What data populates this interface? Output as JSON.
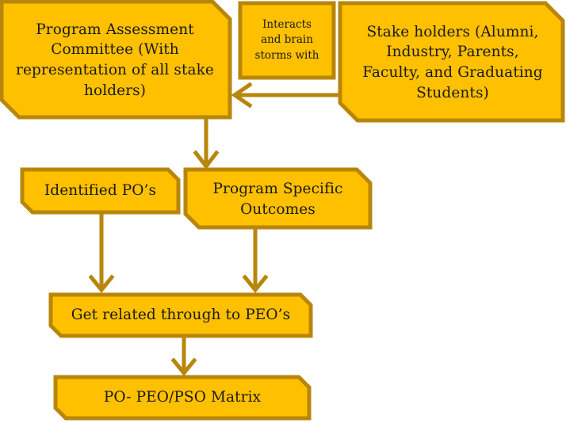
{
  "colors": {
    "fill": "#FFC000",
    "stroke": "#B8860B",
    "arrow": "#B8860B",
    "text": "#1a1a1a"
  },
  "nodes": {
    "committee": {
      "text": "Program Assessment\nCommittee (With\nrepresentation of all stake\nholders)"
    },
    "interacts": {
      "text": "Interacts\nand brain\nstorms with"
    },
    "stakeholders": {
      "text": "Stake holders (Alumni,\nIndustry, Parents,\nFaculty, and Graduating\nStudents)"
    },
    "identified_po": {
      "text": "Identified PO’s"
    },
    "pso": {
      "text": "Program Specific\nOutcomes"
    },
    "peo": {
      "text": "Get related through to PEO’s"
    },
    "matrix": {
      "text": "PO- PEO/PSO Matrix"
    }
  }
}
